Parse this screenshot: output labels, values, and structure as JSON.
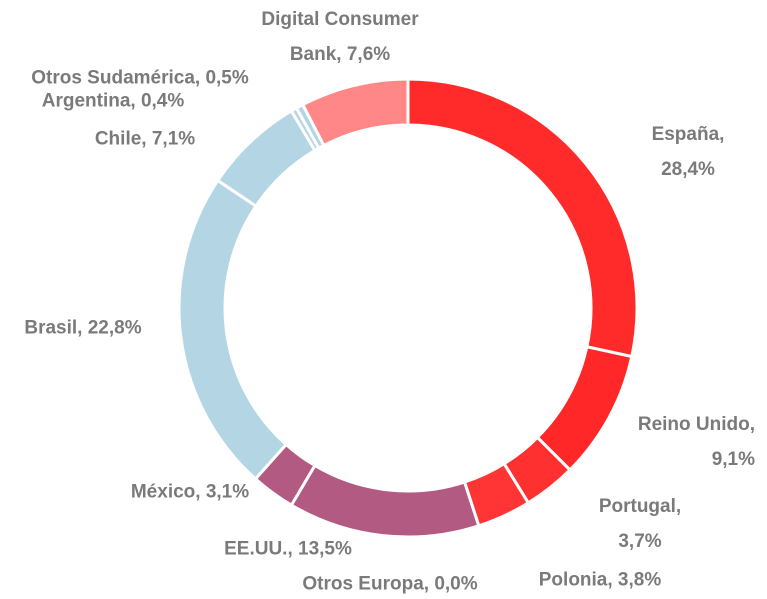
{
  "chart_data": {
    "type": "donut",
    "values": [
      28.4,
      9.1,
      3.7,
      3.8,
      0.0,
      13.5,
      3.1,
      22.8,
      7.1,
      0.4,
      0.5,
      7.6
    ],
    "value_labels": [
      "España, 28,4%",
      "Reino Unido,\n9,1%",
      "Portugal, 3,7%",
      "Polonia, 3,8%",
      "Otros Europa, 0,0%",
      "EE.UU., 13,5%",
      "México, 3,1%",
      "Brasil, 22,8%",
      "Chile, 7,1%",
      "Argentina, 0,4%",
      "Otros Sudamérica, 0,5%",
      "Digital Consumer\nBank, 7,6%"
    ],
    "colors": [
      "#ff2b2b",
      "#ff2727",
      "#ff3030",
      "#ff3535",
      "#b35a82",
      "#b35a82",
      "#b35a82",
      "#b4d6e4",
      "#b4d6e4",
      "#b4d6e4",
      "#b4d6e4",
      "#ff8787"
    ]
  }
}
